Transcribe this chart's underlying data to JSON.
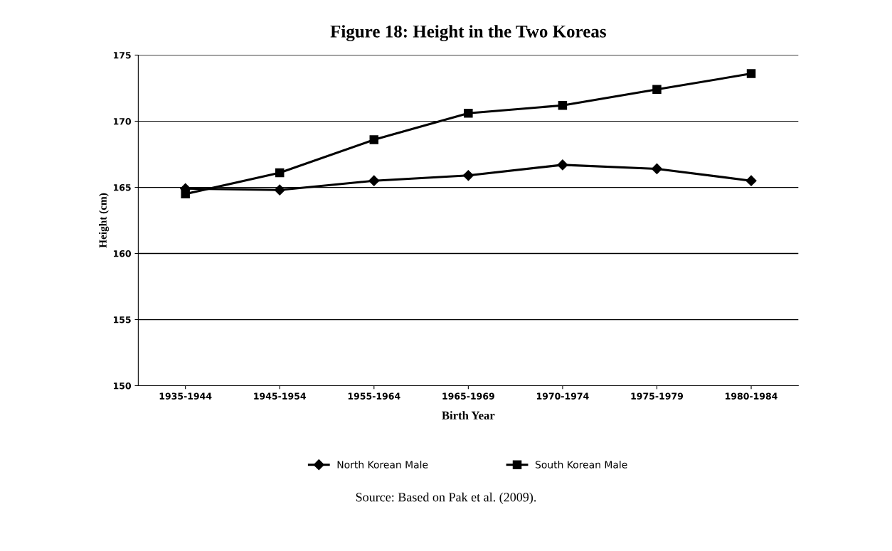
{
  "chart_data": {
    "type": "line",
    "title": "Figure 18: Height in the Two Koreas",
    "xlabel": "Birth Year",
    "ylabel": "Height (cm)",
    "categories": [
      "1935-1944",
      "1945-1954",
      "1955-1964",
      "1965-1969",
      "1970-1974",
      "1975-1979",
      "1980-1984"
    ],
    "series": [
      {
        "name": "North Korean Male",
        "color": "#000000",
        "marker": "diamond",
        "values": [
          164.9,
          164.8,
          165.5,
          165.9,
          166.7,
          166.4,
          165.5
        ]
      },
      {
        "name": "South Korean Male",
        "color": "#000000",
        "marker": "square",
        "values": [
          164.5,
          166.1,
          168.6,
          170.6,
          171.2,
          172.4,
          173.6
        ]
      }
    ],
    "ylim": [
      150,
      175
    ],
    "yticks": [
      150,
      155,
      160,
      165,
      170,
      175
    ],
    "grid": "y",
    "legend": "bottom",
    "line_style": "solid",
    "annotations": [
      "Source: Based on Pak et al. (2009)."
    ]
  }
}
